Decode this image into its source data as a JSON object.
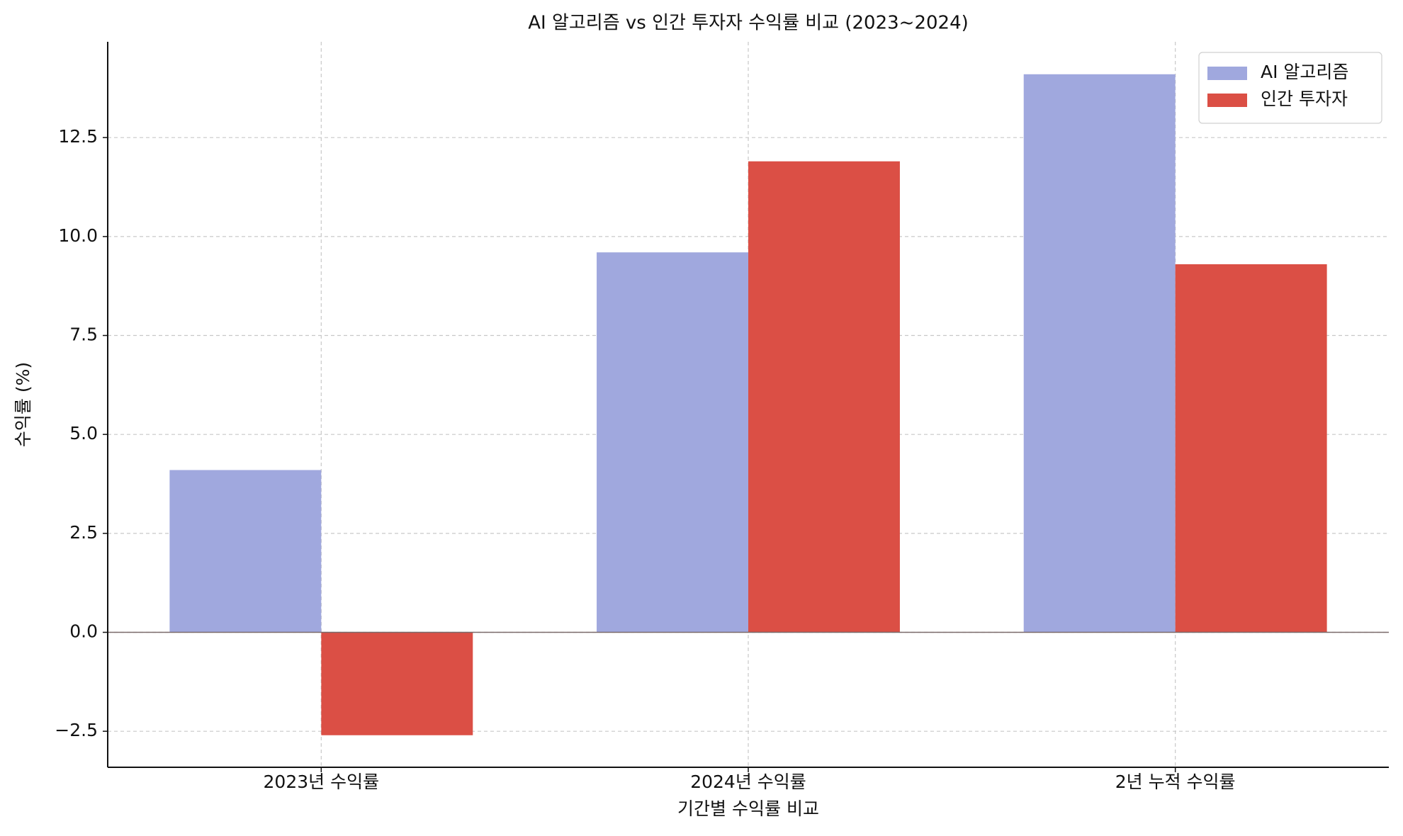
{
  "chart_data": {
    "type": "bar",
    "title": "AI 알고리즘 vs 인간 투자자 수익률 비교 (2023~2024)",
    "x_label": "기간별 수익률 비교",
    "y_label": "수익률 (%)",
    "categories": [
      "2023년 수익률",
      "2024년 수익률",
      "2년 누적 수익률"
    ],
    "series": [
      {
        "name": "AI 알고리즘",
        "color": "#a0a8de",
        "values": [
          4.1,
          9.6,
          14.1
        ]
      },
      {
        "name": "인간 투자자",
        "color": "#db4f45",
        "values": [
          -2.6,
          11.9,
          9.3
        ]
      }
    ],
    "ylim": [
      -3.41,
      14.92
    ],
    "yticks": [
      {
        "value": -2.5,
        "label": "−2.5"
      },
      {
        "value": 0,
        "label": "0.0"
      },
      2.5,
      {
        "value": 5,
        "label": "5.0"
      },
      7.5,
      {
        "value": 10,
        "label": "10.0"
      },
      12.5
    ],
    "grid": true,
    "legend": "upper right"
  }
}
